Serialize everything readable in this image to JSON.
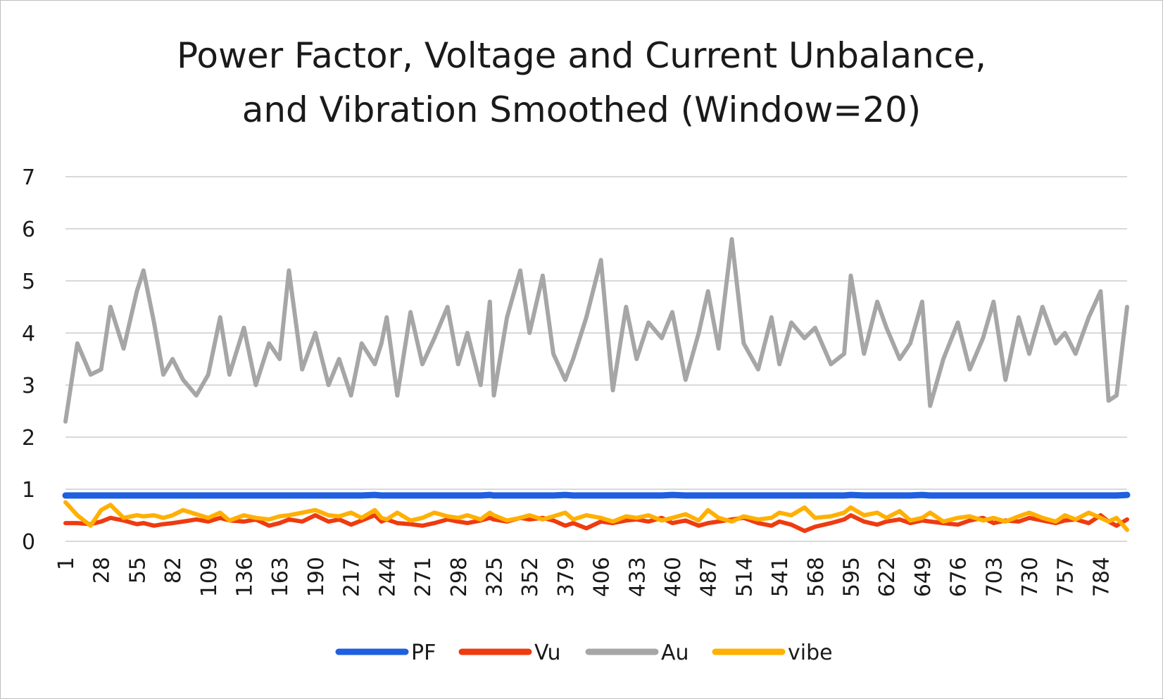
{
  "chart_data": {
    "type": "line",
    "title": "Power Factor, Voltage and Current Unbalance, and Vibration Smoothed (Window=20)",
    "title_lines": [
      "Power Factor, Voltage and Current Unbalance,",
      "and Vibration Smoothed (Window=20)"
    ],
    "xlabel": "",
    "ylabel": "",
    "ylim": [
      0,
      7
    ],
    "yticks": [
      0,
      1,
      2,
      3,
      4,
      5,
      6,
      7
    ],
    "xlim": [
      1,
      804
    ],
    "xtick_labels": [
      "1",
      "28",
      "55",
      "82",
      "109",
      "136",
      "163",
      "190",
      "217",
      "244",
      "271",
      "298",
      "325",
      "352",
      "379",
      "406",
      "433",
      "460",
      "487",
      "514",
      "541",
      "568",
      "595",
      "622",
      "649",
      "676",
      "703",
      "730",
      "757",
      "784"
    ],
    "grid": "horizontal",
    "legend_position": "bottom",
    "x": [
      1,
      10,
      20,
      28,
      35,
      45,
      55,
      60,
      68,
      75,
      82,
      90,
      100,
      109,
      118,
      125,
      136,
      145,
      155,
      163,
      170,
      180,
      190,
      200,
      208,
      217,
      225,
      235,
      240,
      244,
      252,
      262,
      271,
      280,
      290,
      298,
      305,
      315,
      322,
      325,
      335,
      345,
      352,
      362,
      370,
      379,
      385,
      395,
      406,
      415,
      425,
      433,
      442,
      452,
      460,
      470,
      480,
      487,
      495,
      505,
      514,
      525,
      535,
      541,
      550,
      560,
      568,
      580,
      590,
      595,
      605,
      615,
      622,
      632,
      640,
      649,
      655,
      665,
      676,
      685,
      695,
      703,
      712,
      722,
      730,
      740,
      750,
      757,
      765,
      775,
      784,
      790,
      796,
      804
    ],
    "series": [
      {
        "name": "PF",
        "color": "#1f5fe0",
        "values": [
          0.88,
          0.88,
          0.88,
          0.88,
          0.88,
          0.88,
          0.88,
          0.88,
          0.88,
          0.88,
          0.88,
          0.88,
          0.88,
          0.88,
          0.88,
          0.88,
          0.88,
          0.88,
          0.88,
          0.88,
          0.88,
          0.88,
          0.88,
          0.88,
          0.88,
          0.88,
          0.88,
          0.89,
          0.88,
          0.88,
          0.88,
          0.88,
          0.88,
          0.88,
          0.88,
          0.88,
          0.88,
          0.88,
          0.89,
          0.88,
          0.88,
          0.88,
          0.88,
          0.88,
          0.88,
          0.89,
          0.88,
          0.88,
          0.88,
          0.88,
          0.88,
          0.88,
          0.88,
          0.88,
          0.89,
          0.88,
          0.88,
          0.88,
          0.88,
          0.88,
          0.88,
          0.88,
          0.88,
          0.88,
          0.88,
          0.88,
          0.88,
          0.88,
          0.88,
          0.89,
          0.88,
          0.88,
          0.88,
          0.88,
          0.88,
          0.89,
          0.88,
          0.88,
          0.88,
          0.88,
          0.88,
          0.88,
          0.88,
          0.88,
          0.88,
          0.88,
          0.88,
          0.88,
          0.88,
          0.88,
          0.88,
          0.88,
          0.88,
          0.89
        ]
      },
      {
        "name": "Vu",
        "color": "#ee3b10",
        "values": [
          0.35,
          0.35,
          0.33,
          0.38,
          0.45,
          0.4,
          0.33,
          0.35,
          0.3,
          0.33,
          0.35,
          0.38,
          0.42,
          0.38,
          0.45,
          0.4,
          0.38,
          0.42,
          0.3,
          0.35,
          0.42,
          0.38,
          0.5,
          0.38,
          0.42,
          0.32,
          0.4,
          0.5,
          0.38,
          0.42,
          0.35,
          0.33,
          0.3,
          0.35,
          0.42,
          0.38,
          0.35,
          0.4,
          0.45,
          0.42,
          0.38,
          0.45,
          0.42,
          0.45,
          0.4,
          0.3,
          0.35,
          0.25,
          0.38,
          0.35,
          0.4,
          0.42,
          0.38,
          0.45,
          0.35,
          0.4,
          0.3,
          0.35,
          0.38,
          0.42,
          0.45,
          0.35,
          0.3,
          0.38,
          0.32,
          0.2,
          0.28,
          0.35,
          0.42,
          0.5,
          0.38,
          0.32,
          0.38,
          0.42,
          0.35,
          0.4,
          0.38,
          0.35,
          0.32,
          0.4,
          0.45,
          0.35,
          0.4,
          0.38,
          0.45,
          0.4,
          0.35,
          0.4,
          0.42,
          0.35,
          0.5,
          0.38,
          0.3,
          0.42
        ]
      },
      {
        "name": "Au",
        "color": "#a6a6a6",
        "values": [
          2.3,
          3.8,
          3.2,
          3.3,
          4.5,
          3.7,
          4.8,
          5.2,
          4.2,
          3.2,
          3.5,
          3.1,
          2.8,
          3.2,
          4.3,
          3.2,
          4.1,
          3.0,
          3.8,
          3.5,
          5.2,
          3.3,
          4.0,
          3.0,
          3.5,
          2.8,
          3.8,
          3.4,
          3.8,
          4.3,
          2.8,
          4.4,
          3.4,
          3.9,
          4.5,
          3.4,
          4.0,
          3.0,
          4.6,
          2.8,
          4.3,
          5.2,
          4.0,
          5.1,
          3.6,
          3.1,
          3.5,
          4.3,
          5.4,
          2.9,
          4.5,
          3.5,
          4.2,
          3.9,
          4.4,
          3.1,
          4.0,
          4.8,
          3.7,
          5.8,
          3.8,
          3.3,
          4.3,
          3.4,
          4.2,
          3.9,
          4.1,
          3.4,
          3.6,
          5.1,
          3.6,
          4.6,
          4.1,
          3.5,
          3.8,
          4.6,
          2.6,
          3.5,
          4.2,
          3.3,
          3.9,
          4.6,
          3.1,
          4.3,
          3.6,
          4.5,
          3.8,
          4.0,
          3.6,
          4.3,
          4.8,
          2.7,
          2.8,
          4.5
        ]
      },
      {
        "name": "vibe",
        "color": "#ffb000",
        "values": [
          0.75,
          0.5,
          0.3,
          0.6,
          0.7,
          0.45,
          0.5,
          0.48,
          0.5,
          0.45,
          0.5,
          0.6,
          0.52,
          0.45,
          0.55,
          0.4,
          0.5,
          0.45,
          0.42,
          0.48,
          0.5,
          0.55,
          0.6,
          0.5,
          0.48,
          0.55,
          0.45,
          0.6,
          0.45,
          0.42,
          0.55,
          0.4,
          0.45,
          0.55,
          0.48,
          0.45,
          0.5,
          0.42,
          0.55,
          0.5,
          0.4,
          0.45,
          0.5,
          0.42,
          0.48,
          0.55,
          0.42,
          0.5,
          0.45,
          0.38,
          0.48,
          0.45,
          0.5,
          0.4,
          0.45,
          0.52,
          0.4,
          0.6,
          0.45,
          0.38,
          0.48,
          0.42,
          0.45,
          0.55,
          0.5,
          0.65,
          0.45,
          0.48,
          0.55,
          0.65,
          0.5,
          0.55,
          0.45,
          0.58,
          0.4,
          0.45,
          0.55,
          0.38,
          0.45,
          0.48,
          0.4,
          0.45,
          0.38,
          0.48,
          0.55,
          0.45,
          0.38,
          0.5,
          0.42,
          0.55,
          0.45,
          0.38,
          0.45,
          0.22
        ]
      }
    ]
  }
}
